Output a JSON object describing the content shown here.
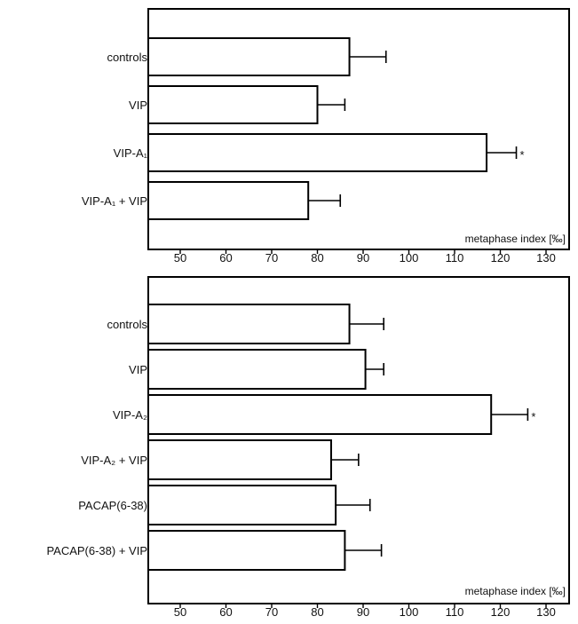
{
  "chart_data": [
    {
      "type": "bar",
      "orientation": "horizontal",
      "xlabel": "metaphase index [‰]",
      "xlim": [
        42,
        135
      ],
      "xticks": [
        50,
        60,
        70,
        80,
        90,
        100,
        110,
        120,
        130
      ],
      "categories": [
        "controls",
        "VIP",
        "VIP-A₁",
        "VIP-A₁ + VIP"
      ],
      "values": [
        87,
        80,
        117,
        78
      ],
      "error": [
        8,
        6,
        6.5,
        7
      ],
      "significant": [
        false,
        false,
        true,
        false
      ],
      "annotation": "*",
      "legend": "none",
      "grid": false
    },
    {
      "type": "bar",
      "orientation": "horizontal",
      "xlabel": "metaphase index [‰]",
      "xlim": [
        42,
        135
      ],
      "xticks": [
        50,
        60,
        70,
        80,
        90,
        100,
        110,
        120,
        130
      ],
      "categories": [
        "controls",
        "VIP",
        "VIP-A₂",
        "VIP-A₂ + VIP",
        "PACAP(6-38)",
        "PACAP(6-38) + VIP"
      ],
      "values": [
        87,
        90.5,
        118,
        83,
        84,
        86
      ],
      "error": [
        7.5,
        4,
        8,
        6,
        7.5,
        8
      ],
      "significant": [
        false,
        false,
        true,
        false,
        false,
        false
      ],
      "annotation": "*",
      "legend": "none",
      "grid": false
    }
  ]
}
